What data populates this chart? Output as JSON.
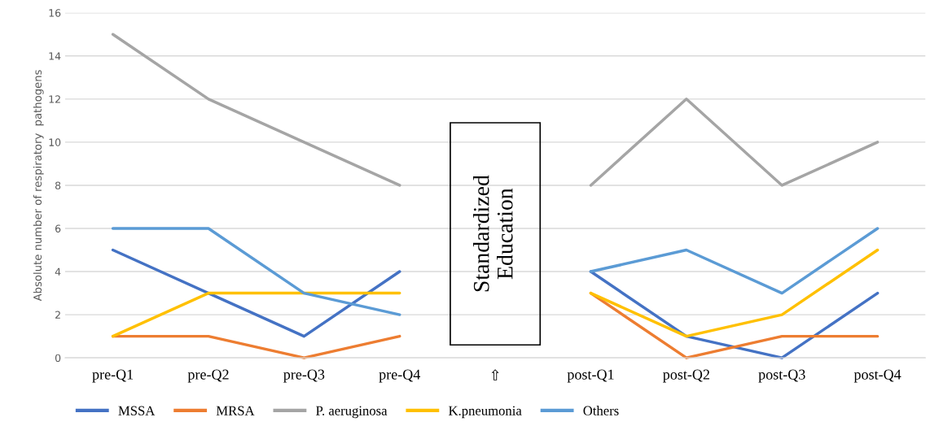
{
  "chart_data": {
    "type": "line",
    "ylabel": "Absolute number of respiratory  pathogens",
    "categories": [
      "pre-Q1",
      "pre-Q2",
      "pre-Q3",
      "pre-Q4",
      "⇧",
      "post-Q1",
      "post-Q2",
      "post-Q3",
      "post-Q4"
    ],
    "series": [
      {
        "name": "MSSA",
        "color": "#4472c4",
        "values": [
          5,
          3,
          1,
          4,
          null,
          4,
          1,
          0,
          3
        ]
      },
      {
        "name": "MRSA",
        "color": "#ed7d31",
        "values": [
          1,
          1,
          0,
          1,
          null,
          3,
          0,
          1,
          1
        ]
      },
      {
        "name": "P. aeruginosa",
        "color": "#a5a5a5",
        "values": [
          15,
          12,
          10,
          8,
          null,
          8,
          12,
          8,
          10
        ]
      },
      {
        "name": "K.pneumonia",
        "color": "#ffc000",
        "values": [
          1,
          3,
          3,
          3,
          null,
          3,
          1,
          2,
          5
        ]
      },
      {
        "name": "Others",
        "color": "#5b9bd5",
        "values": [
          6,
          6,
          3,
          2,
          null,
          4,
          5,
          3,
          6
        ]
      }
    ],
    "ylim": [
      0,
      16
    ],
    "yticks": [
      0,
      2,
      4,
      6,
      8,
      10,
      12,
      14,
      16
    ],
    "grid": "y",
    "legend": "bottom",
    "marker": "none",
    "line_style": "solid",
    "annotations": [
      "Standardized Education"
    ]
  }
}
